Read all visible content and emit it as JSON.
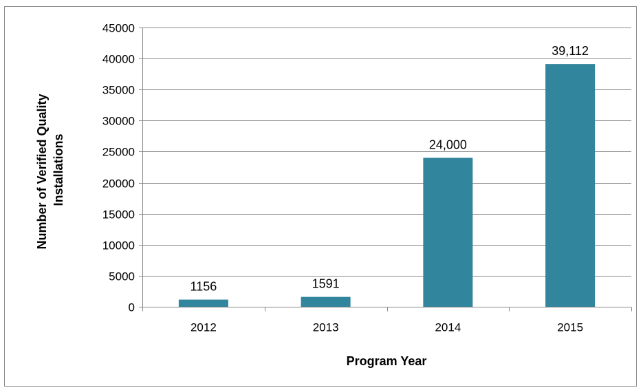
{
  "chart_data": {
    "type": "bar",
    "title": "",
    "xlabel": "Program Year",
    "ylabel_lines": [
      "Number of Verified Quality",
      "Installations"
    ],
    "categories": [
      "2012",
      "2013",
      "2014",
      "2015"
    ],
    "values": [
      1156,
      1591,
      24000,
      39112
    ],
    "data_labels": [
      "1156",
      "1591",
      "24,000",
      "39,112"
    ],
    "ylim": [
      0,
      45000
    ],
    "yticks": [
      0,
      5000,
      10000,
      15000,
      20000,
      25000,
      30000,
      35000,
      40000,
      45000
    ],
    "ytick_labels": [
      "0",
      "5000",
      "10000",
      "15000",
      "20000",
      "25000",
      "30000",
      "35000",
      "40000",
      "45000"
    ],
    "grid": true,
    "legend": "none",
    "bar_color": "#31859c",
    "grid_color": "#888888"
  }
}
